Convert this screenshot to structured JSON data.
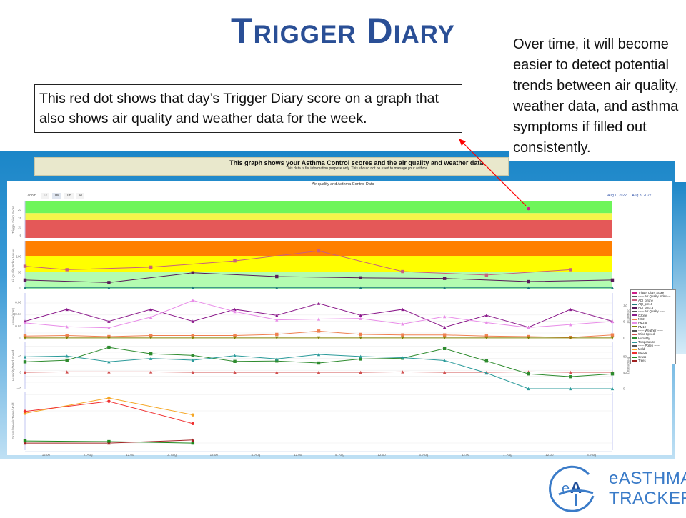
{
  "slide": {
    "title": "Trigger Diary",
    "callout": "This red dot shows that day’s Trigger Diary score on a graph that also shows air quality and weather data for the week.",
    "side_text": "Over time, it will become easier to detect potential trends between air quality, weather data, and asthma symptoms if filled out consistently.",
    "logo_line1": "eASTHMA",
    "logo_line2": "TRACKER",
    "logo_mark": "eAT",
    "arrow_color": "#ff0000"
  },
  "screenshot": {
    "banner_title": "This graph shows your Asthma Control scores and the air quality and weather data.",
    "banner_subtitle": "This data is for information purpose only. This should not be used to manage your asthma.",
    "zoom_label": "Zoom",
    "zoom_buttons": [
      "1d",
      "1w",
      "1m",
      "All"
    ],
    "zoom_selected": "1w",
    "date_range": "Aug 1, 2022  →  Aug 8, 2022"
  },
  "chart_data": {
    "type": "line",
    "title": "Air quality and Asthma Control Data",
    "x_range": [
      "2022-08-01 06:00",
      "2022-08-08 06:00"
    ],
    "x_tick_labels": [
      "12:00",
      "2. Aug",
      "12:00",
      "3. Aug",
      "12:00",
      "4. Aug",
      "12:00",
      "5. Aug",
      "12:00",
      "6. Aug",
      "12:00",
      "7. Aug",
      "12:00",
      "8. Aug"
    ],
    "x_tick_times": [
      "2022-08-01 12:00",
      "2022-08-02 00:00",
      "2022-08-02 12:00",
      "2022-08-03 00:00",
      "2022-08-03 12:00",
      "2022-08-04 00:00",
      "2022-08-04 12:00",
      "2022-08-05 00:00",
      "2022-08-05 12:00",
      "2022-08-06 00:00",
      "2022-08-06 12:00",
      "2022-08-07 00:00",
      "2022-08-07 12:00",
      "2022-08-08 00:00"
    ],
    "grid": true,
    "legend_position": "right",
    "legend": [
      "Trigger Diary Score",
      "------ Air Quality Index ---",
      "AQI_ozone",
      "AQI_pm10",
      "AQI_pm2.5",
      "------ Air Quality -----",
      "Ozone",
      "NO2",
      "PM2.5",
      "PM10",
      "------ Weather ------",
      "Wind Speed",
      "Humidity",
      "Temperature",
      "------ Pollen ------",
      "Mold",
      "Weeds",
      "Grass",
      "Trees"
    ],
    "panes": [
      {
        "id": "trigger",
        "ylabel": "Trigger Diary Score",
        "ylim": [
          3.8,
          24.6
        ],
        "yticks": [
          5,
          10,
          15,
          20
        ],
        "bands": [
          {
            "from": 3.8,
            "to": 14,
            "color": "#e45858"
          },
          {
            "from": 14,
            "to": 18,
            "color": "#f5f54a"
          },
          {
            "from": 18,
            "to": 24.6,
            "color": "#6ef55a"
          }
        ],
        "series": [
          {
            "name": "Trigger Diary Score",
            "color": "#d0208a",
            "marker": "circle",
            "x": [
              "2022-08-07 06:00"
            ],
            "values": [
              20.5
            ]
          }
        ]
      },
      {
        "id": "aqi",
        "ylabel": "Air Quality Index Values",
        "ylim": [
          -5,
          148
        ],
        "yticks": [
          0,
          50,
          100
        ],
        "bands": [
          {
            "from": -5,
            "to": 50,
            "color": "#b3fcb0"
          },
          {
            "from": 50,
            "to": 100,
            "color": "#ffff00"
          },
          {
            "from": 100,
            "to": 148,
            "color": "#ff7f00"
          }
        ],
        "series": [
          {
            "name": "AQI_ozone",
            "color": "#c8607e",
            "marker": "square",
            "x": [
              "2022-08-01 06:00",
              "2022-08-01 18:00",
              "2022-08-02 18:00",
              "2022-08-03 18:00",
              "2022-08-04 18:00",
              "2022-08-05 18:00",
              "2022-08-06 18:00",
              "2022-08-07 18:00"
            ],
            "values": [
              69,
              58,
              66,
              86,
              118,
              52,
              41,
              58
            ]
          },
          {
            "name": "AQI_pm10",
            "color": "#1a7a7a",
            "marker": "triangle",
            "x": [
              "2022-08-01 06:00",
              "2022-08-02 06:00",
              "2022-08-03 06:00",
              "2022-08-04 06:00",
              "2022-08-05 06:00",
              "2022-08-06 06:00",
              "2022-08-07 06:00",
              "2022-08-08 06:00"
            ],
            "values": [
              0,
              0,
              0,
              0,
              0,
              0,
              0,
              0
            ]
          },
          {
            "name": "AQI_pm2.5",
            "color": "#5a1a5a",
            "marker": "square",
            "x": [
              "2022-08-01 06:00",
              "2022-08-02 06:00",
              "2022-08-03 06:00",
              "2022-08-04 06:00",
              "2022-08-05 06:00",
              "2022-08-06 06:00",
              "2022-08-07 06:00",
              "2022-08-08 06:00"
            ],
            "values": [
              25,
              17,
              48,
              36,
              32,
              30,
              20,
              25
            ]
          }
        ]
      },
      {
        "id": "airquality",
        "ylabel": "ozone(ppm)",
        "ylim": [
          -0.0036,
          0.0755
        ],
        "yticks": [
          0,
          0.02,
          0.04,
          0.06
        ],
        "ylabel_right": "pm(µg/m3)",
        "ylim_right": [
          -0.8,
          16.4
        ],
        "yticks_right": [
          0,
          6,
          12
        ],
        "series": [
          {
            "name": "Ozone",
            "color": "#8b1a8b",
            "marker": "triangle",
            "axis": "left",
            "values": [
              0.028,
              0.048,
              0.028,
              0.048,
              0.028,
              0.048,
              0.038,
              0.058,
              0.038,
              0.048,
              0.018,
              0.038,
              0.018,
              0.048,
              0.028
            ]
          },
          {
            "name": "PM2.5",
            "color": "#e88ce8",
            "marker": "triangle",
            "axis": "right",
            "values": [
              5.5,
              4.1,
              3.7,
              7.6,
              13.7,
              9.6,
              6.6,
              6.9,
              7.1,
              5.1,
              7.8,
              5.6,
              3.8,
              4.9,
              6.0
            ]
          },
          {
            "name": "NO2",
            "color": "#f08050",
            "marker": "square",
            "axis": "right",
            "values": [
              0.7,
              0.9,
              0.5,
              0.9,
              0.9,
              0.9,
              1.3,
              2.5,
              1.3,
              1.1,
              1.1,
              0.7,
              0.5,
              0.2,
              1.1
            ]
          },
          {
            "name": "PM10",
            "color": "#808000",
            "marker": "triangle-down",
            "axis": "right",
            "values": [
              0,
              0,
              0,
              0,
              0,
              0,
              0,
              0,
              0,
              0,
              0,
              0,
              0,
              0,
              0
            ]
          }
        ]
      },
      {
        "id": "weather",
        "ylabel": "Humidity/Wind Speed",
        "ylim": [
          -42.7,
          76.4
        ],
        "yticks": [
          -40,
          0,
          40
        ],
        "ylabel_right": "Temperature",
        "ylim_right": [
          -1.8,
          117
        ],
        "yticks_right": [
          0,
          40,
          80
        ],
        "series": [
          {
            "name": "Wind Speed",
            "color": "#d05050",
            "marker": "triangle",
            "axis": "left",
            "values": [
              0,
              1,
              1,
              1,
              0,
              0,
              0,
              0,
              0,
              1,
              0,
              0,
              1,
              0,
              0
            ]
          },
          {
            "name": "Humidity",
            "color": "#2e8b2e",
            "marker": "square",
            "axis": "left",
            "values": [
              26,
              30,
              62,
              46,
              42,
              27,
              28,
              23,
              33,
              35,
              59,
              28,
              -4,
              -11,
              -4
            ]
          },
          {
            "name": "Temperature",
            "color": "#2a9a9a",
            "marker": "triangle",
            "axis": "right",
            "values": [
              79,
              81,
              67,
              75,
              71,
              82,
              74,
              85,
              80,
              77,
              70,
              39,
              0,
              0,
              0
            ]
          }
        ]
      },
      {
        "id": "pollen",
        "ylabel": "Grass/Weeds/Trees/Mold",
        "ylim": [
          -0.44,
          3.2
        ],
        "yticks": [],
        "series": [
          {
            "name": "Mold",
            "color": "#f5a623",
            "marker": "circle",
            "x": [
              "2022-08-01 06:00",
              "2022-08-02 06:00",
              "2022-08-03 06:00"
            ],
            "values": [
              1.85,
              2.8,
              1.75
            ]
          },
          {
            "name": "Weeds",
            "color": "#f03030",
            "marker": "circle",
            "x": [
              "2022-08-01 06:00",
              "2022-08-02 06:00",
              "2022-08-03 06:00"
            ],
            "values": [
              1.97,
              2.59,
              1.21
            ]
          },
          {
            "name": "Grass",
            "color": "#1e8a1e",
            "marker": "square",
            "x": [
              "2022-08-01 06:00",
              "2022-08-02 06:00",
              "2022-08-03 06:00"
            ],
            "values": [
              0.13,
              0.09,
              0
            ]
          },
          {
            "name": "Trees",
            "color": "#a02020",
            "marker": "triangle",
            "x": [
              "2022-08-01 06:00",
              "2022-08-02 06:00",
              "2022-08-03 06:00"
            ],
            "values": [
              0,
              0,
              0.19
            ]
          }
        ]
      }
    ],
    "default_times": [
      "2022-08-01 06:00",
      "2022-08-01 18:00",
      "2022-08-02 06:00",
      "2022-08-02 18:00",
      "2022-08-03 06:00",
      "2022-08-03 18:00",
      "2022-08-04 06:00",
      "2022-08-04 18:00",
      "2022-08-05 06:00",
      "2022-08-05 18:00",
      "2022-08-06 06:00",
      "2022-08-06 18:00",
      "2022-08-07 06:00",
      "2022-08-07 18:00",
      "2022-08-08 06:00"
    ],
    "legend_colors": [
      "#d0208a",
      "#555555",
      "#c8607e",
      "#1a7a7a",
      "#5a1a5a",
      "#555555",
      "#8b1a8b",
      "#f08050",
      "#e88ce8",
      "#808000",
      "#555555",
      "#d05050",
      "#2e8b2e",
      "#2a9a9a",
      "#555555",
      "#f5a623",
      "#f03030",
      "#1e8a1e",
      "#a02020"
    ]
  }
}
